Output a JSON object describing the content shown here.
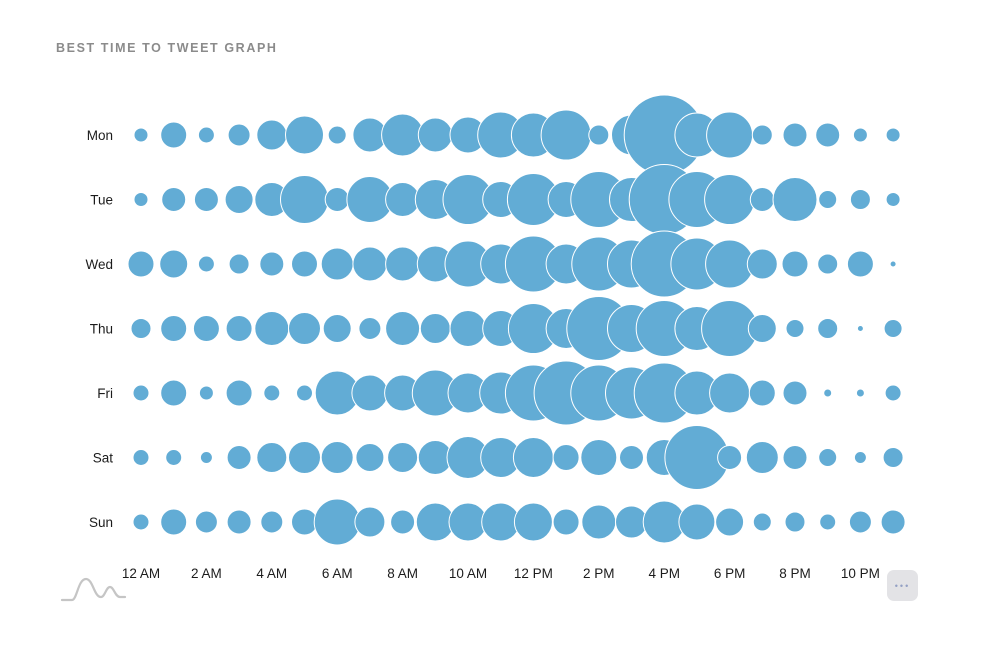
{
  "ui": {
    "title": "BEST TIME TO TWEET GRAPH",
    "more_label": "•••",
    "logo_icon": "hills-wave-logo"
  },
  "colors": {
    "bubble": "#62acd5",
    "title_text": "#8b8b8b",
    "axis_text": "#1c1c1c",
    "more_button_bg": "#e3e3e6",
    "more_button_dots": "#93a0c4",
    "logo_stroke": "#c5c5c5"
  },
  "chart_data": {
    "type": "bubble",
    "title": "BEST TIME TO TWEET GRAPH",
    "xlabel": "",
    "ylabel": "",
    "x_hours": [
      0,
      1,
      2,
      3,
      4,
      5,
      6,
      7,
      8,
      9,
      10,
      11,
      12,
      13,
      14,
      15,
      16,
      17,
      18,
      19,
      20,
      21,
      22,
      23
    ],
    "x_tick_labels": [
      "12 AM",
      "2 AM",
      "4 AM",
      "6 AM",
      "8 AM",
      "10 AM",
      "12 PM",
      "2 PM",
      "4 PM",
      "6 PM",
      "8 PM",
      "10 PM"
    ],
    "x_tick_hours": [
      0,
      2,
      4,
      6,
      8,
      10,
      12,
      14,
      16,
      18,
      20,
      22
    ],
    "categories": [
      "Mon",
      "Tue",
      "Wed",
      "Thu",
      "Fri",
      "Sat",
      "Sun"
    ],
    "legend": "none",
    "grid": false,
    "bubble_radius_px_note": "radius per hour 12AM-11PM, estimated from pixels",
    "series": [
      {
        "name": "Mon",
        "radii": [
          7,
          13,
          8,
          11,
          15,
          19,
          9,
          17,
          21,
          17,
          18,
          23,
          22,
          25,
          10,
          20,
          40,
          22,
          23,
          10,
          12,
          12,
          7,
          7
        ]
      },
      {
        "name": "Tue",
        "radii": [
          7,
          12,
          12,
          14,
          17,
          24,
          12,
          23,
          17,
          20,
          25,
          18,
          26,
          18,
          28,
          22,
          35,
          28,
          25,
          12,
          22,
          9,
          10,
          7
        ]
      },
      {
        "name": "Wed",
        "radii": [
          13,
          14,
          8,
          10,
          12,
          13,
          16,
          17,
          17,
          18,
          23,
          20,
          28,
          20,
          27,
          24,
          33,
          26,
          24,
          15,
          13,
          10,
          13,
          3
        ]
      },
      {
        "name": "Thu",
        "radii": [
          10,
          13,
          13,
          13,
          17,
          16,
          14,
          11,
          17,
          15,
          18,
          18,
          25,
          20,
          32,
          24,
          28,
          22,
          28,
          14,
          9,
          10,
          3,
          9
        ]
      },
      {
        "name": "Fri",
        "radii": [
          8,
          13,
          7,
          13,
          8,
          8,
          22,
          18,
          18,
          23,
          20,
          21,
          28,
          32,
          28,
          26,
          30,
          22,
          20,
          13,
          12,
          4,
          4,
          8
        ]
      },
      {
        "name": "Sat",
        "radii": [
          8,
          8,
          6,
          12,
          15,
          16,
          16,
          14,
          15,
          17,
          21,
          20,
          20,
          13,
          18,
          12,
          18,
          32,
          12,
          16,
          12,
          9,
          6,
          10
        ]
      },
      {
        "name": "Sun",
        "radii": [
          8,
          13,
          11,
          12,
          11,
          13,
          23,
          15,
          12,
          19,
          19,
          19,
          19,
          13,
          17,
          16,
          21,
          18,
          14,
          9,
          10,
          8,
          11,
          12
        ]
      }
    ]
  }
}
